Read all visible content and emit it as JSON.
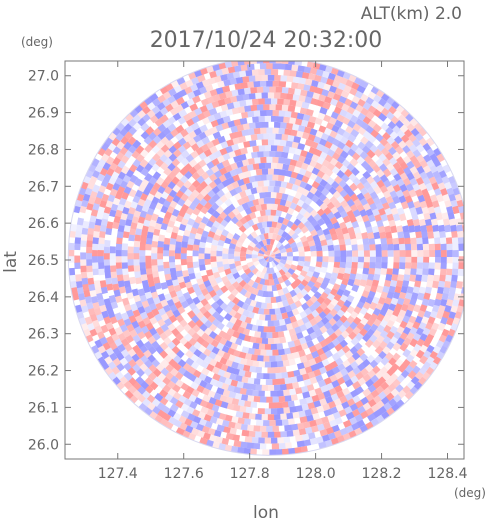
{
  "header": {
    "altitude_label": "ALT(km)  2.0",
    "timestamp": "2017/10/24 20:32:00"
  },
  "chart_data": {
    "type": "heatmap",
    "title": "2017/10/24 20:32:00",
    "subtitle": "ALT(km)  2.0",
    "xlabel": "lon",
    "ylabel": "lat",
    "x_unit": "(deg)",
    "y_unit": "(deg)",
    "xlim": [
      127.24,
      128.45
    ],
    "ylim": [
      25.96,
      27.04
    ],
    "x_ticks": [
      127.4,
      127.6,
      127.8,
      128.0,
      128.2,
      128.4
    ],
    "x_tick_labels": [
      "127.4",
      "127.6",
      "127.8",
      "128.0",
      "128.2",
      "128.4"
    ],
    "y_ticks": [
      26.0,
      26.1,
      26.2,
      26.3,
      26.4,
      26.5,
      26.6,
      26.7,
      26.8,
      26.9,
      27.0
    ],
    "y_tick_labels": [
      "26.0",
      "26.1",
      "26.2",
      "26.3",
      "26.4",
      "26.5",
      "26.6",
      "26.7",
      "26.8",
      "26.9",
      "27.0"
    ],
    "scan_center": {
      "lon": 127.86,
      "lat": 26.51
    },
    "scan_radius_deg_lon": 0.61,
    "scan_radius_deg_lat": 0.54,
    "color_positive": "#ff9999",
    "color_negative": "#9999ff",
    "grid": false,
    "legend": "none"
  }
}
